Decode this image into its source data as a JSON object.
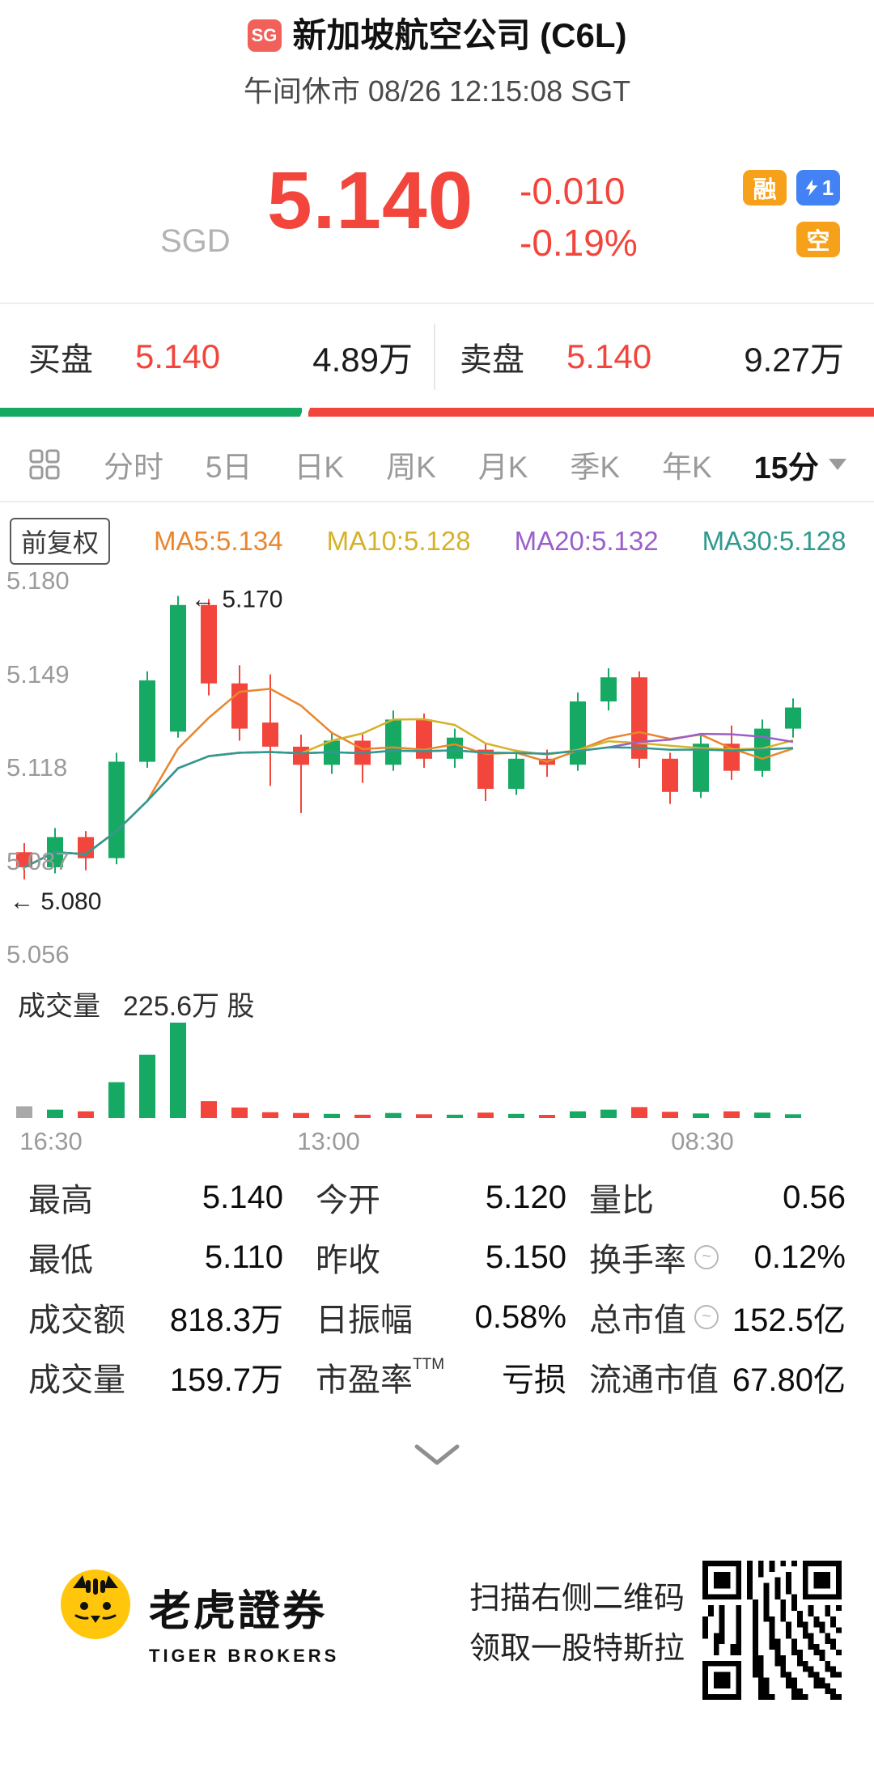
{
  "colors": {
    "up": "#16a963",
    "down": "#f2453c",
    "flat": "#a9a9a9",
    "sg_red": "#f2605a",
    "badge_orange": "#f7a11a",
    "badge_blue": "#4282f5"
  },
  "header": {
    "market_badge": "SG",
    "title": "新加坡航空公司 (C6L)",
    "status_line": "午间休市 08/26 12:15:08 SGT"
  },
  "price": {
    "currency": "SGD",
    "last": "5.140",
    "change": "-0.010",
    "change_pct": "-0.19%",
    "badges": {
      "margin": "融",
      "short": "空",
      "flash_count": "1"
    }
  },
  "order_book": {
    "bid_label": "买盘",
    "bid_price": "5.140",
    "bid_volume": "4.89万",
    "ask_label": "卖盘",
    "ask_price": "5.140",
    "ask_volume": "9.27万",
    "bid_ratio_pct": 34.5
  },
  "tabs": {
    "items": [
      "分时",
      "5日",
      "日K",
      "周K",
      "月K",
      "季K",
      "年K"
    ],
    "selected": "15分"
  },
  "chart_legend": {
    "adjust": "前复权",
    "ma5": "MA5:5.134",
    "ma10": "MA10:5.128",
    "ma20": "MA20:5.132",
    "ma30": "MA30:5.128"
  },
  "chart_data": {
    "type": "candlestick",
    "timeframe": "15分",
    "y_max": 5.18,
    "y_min": 5.056,
    "y_axis_labels": [
      "5.180",
      "5.149",
      "5.118",
      "5.087",
      "5.056"
    ],
    "x_axis_labels": [
      "16:30",
      "13:00",
      "08:30"
    ],
    "high_annotation": "5.170",
    "low_annotation": "5.080",
    "volume_label": "成交量",
    "volume_value": "225.6万 股",
    "colors": {
      "ma5": "#e8862e",
      "ma10": "#d5b229",
      "ma20": "#9a5fc9",
      "ma30": "#2f9a8e"
    },
    "candles": [
      [
        5.09,
        5.085,
        5.093,
        5.081
      ],
      [
        5.085,
        5.095,
        5.098,
        5.083
      ],
      [
        5.095,
        5.088,
        5.097,
        5.084
      ],
      [
        5.088,
        5.12,
        5.123,
        5.086
      ],
      [
        5.12,
        5.147,
        5.15,
        5.118
      ],
      [
        5.13,
        5.172,
        5.175,
        5.128
      ],
      [
        5.172,
        5.146,
        5.174,
        5.142
      ],
      [
        5.146,
        5.131,
        5.152,
        5.127
      ],
      [
        5.133,
        5.125,
        5.149,
        5.112
      ],
      [
        5.125,
        5.119,
        5.129,
        5.103
      ],
      [
        5.119,
        5.127,
        5.13,
        5.116
      ],
      [
        5.127,
        5.119,
        5.129,
        5.113
      ],
      [
        5.119,
        5.134,
        5.137,
        5.117
      ],
      [
        5.134,
        5.121,
        5.136,
        5.118
      ],
      [
        5.121,
        5.128,
        5.131,
        5.118
      ],
      [
        5.124,
        5.111,
        5.126,
        5.107
      ],
      [
        5.111,
        5.121,
        5.124,
        5.109
      ],
      [
        5.121,
        5.119,
        5.124,
        5.115
      ],
      [
        5.119,
        5.14,
        5.143,
        5.117
      ],
      [
        5.14,
        5.148,
        5.151,
        5.137
      ],
      [
        5.148,
        5.121,
        5.15,
        5.118
      ],
      [
        5.121,
        5.11,
        5.123,
        5.106
      ],
      [
        5.11,
        5.126,
        5.129,
        5.108
      ],
      [
        5.126,
        5.117,
        5.132,
        5.114
      ],
      [
        5.117,
        5.131,
        5.134,
        5.115
      ],
      [
        5.131,
        5.138,
        5.141,
        5.128
      ]
    ],
    "volumes_wan": [
      28,
      20,
      16,
      85,
      150,
      226,
      40,
      25,
      14,
      12,
      10,
      8,
      12,
      9,
      8,
      13,
      10,
      5,
      16,
      20,
      26,
      15,
      11,
      16,
      13,
      9
    ]
  },
  "stats": {
    "rows": [
      [
        {
          "label": "最高",
          "value": "5.140"
        },
        {
          "label": "今开",
          "value": "5.120"
        },
        {
          "label": "量比",
          "value": "0.56"
        }
      ],
      [
        {
          "label": "最低",
          "value": "5.110"
        },
        {
          "label": "昨收",
          "value": "5.150"
        },
        {
          "label": "换手率",
          "info": true,
          "value": "0.12%"
        }
      ],
      [
        {
          "label": "成交额",
          "value": "818.3万"
        },
        {
          "label": "日振幅",
          "value": "0.58%"
        },
        {
          "label": "总市值",
          "info": true,
          "value": "152.5亿"
        }
      ],
      [
        {
          "label": "成交量",
          "value": "159.7万"
        },
        {
          "label": "市盈率",
          "sup": "TTM",
          "value": "亏损"
        },
        {
          "label": "流通市值",
          "value": "67.80亿"
        }
      ]
    ]
  },
  "footer": {
    "brand_cn": "老虎證券",
    "brand_en": "TIGER BROKERS",
    "promo_line1": "扫描右侧二维码",
    "promo_line2": "领取一股特斯拉"
  }
}
